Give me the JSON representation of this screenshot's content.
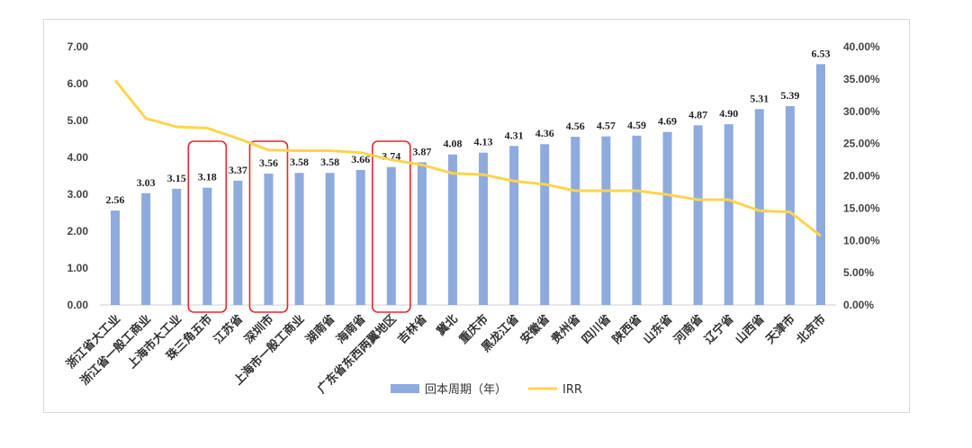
{
  "chart_data": {
    "type": "bar",
    "categories": [
      "浙江省大工业",
      "浙江省一般工商业",
      "上海市大工业",
      "珠三角五市",
      "江苏省",
      "深圳市",
      "上海市一般工商业",
      "湖南省",
      "海南省",
      "广东省东西两翼地区",
      "吉林省",
      "冀北",
      "重庆市",
      "黑龙江省",
      "安徽省",
      "贵州省",
      "四川省",
      "陕西省",
      "山东省",
      "河南省",
      "辽宁省",
      "山西省",
      "天津市",
      "北京市"
    ],
    "series": [
      {
        "name": "回本周期（年）",
        "type": "bar",
        "axis": "left",
        "color": "#8faadc",
        "values": [
          2.56,
          3.03,
          3.15,
          3.18,
          3.37,
          3.56,
          3.58,
          3.58,
          3.66,
          3.74,
          3.87,
          4.08,
          4.13,
          4.31,
          4.36,
          4.56,
          4.57,
          4.59,
          4.69,
          4.87,
          4.9,
          5.31,
          5.39,
          6.53
        ],
        "labels": [
          "2.56",
          "3.03",
          "3.15",
          "3.18",
          "3.37",
          "3.56",
          "3.58",
          "3.58",
          "3.66",
          "3.74",
          "3.87",
          "4.08",
          "4.13",
          "4.31",
          "4.36",
          "4.56",
          "4.57",
          "4.59",
          "4.69",
          "4.87",
          "4.90",
          "5.31",
          "5.39",
          "6.53"
        ]
      },
      {
        "name": "IRR",
        "type": "line",
        "axis": "right",
        "color": "#ffd44d",
        "values": [
          34.8,
          28.9,
          27.6,
          27.4,
          25.8,
          24.0,
          23.9,
          23.9,
          23.6,
          22.5,
          21.7,
          20.4,
          20.2,
          19.2,
          18.7,
          17.7,
          17.7,
          17.7,
          17.1,
          16.3,
          16.3,
          14.6,
          14.4,
          10.7
        ]
      }
    ],
    "left_axis": {
      "ylim": [
        0,
        7
      ],
      "ticks": [
        "0.00",
        "1.00",
        "2.00",
        "3.00",
        "4.00",
        "5.00",
        "6.00",
        "7.00"
      ]
    },
    "right_axis": {
      "ylim": [
        0,
        40
      ],
      "ticks": [
        "0.00%",
        "5.00%",
        "10.00%",
        "15.00%",
        "20.00%",
        "25.00%",
        "30.00%",
        "35.00%",
        "40.00%"
      ]
    },
    "highlighted_categories": [
      "珠三角五市",
      "深圳市",
      "广东省东西两翼地区"
    ],
    "highlight_color": "#e8262c",
    "legend_position": "bottom",
    "grid": false
  }
}
